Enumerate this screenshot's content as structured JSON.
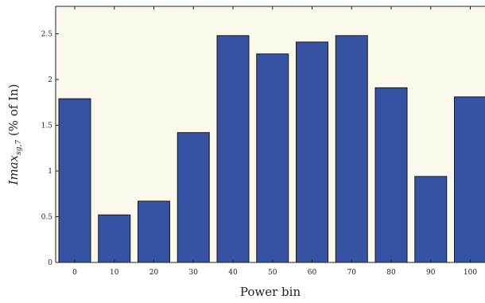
{
  "chart_data": {
    "type": "bar",
    "categories": [
      "0",
      "10",
      "20",
      "30",
      "40",
      "50",
      "60",
      "70",
      "80",
      "90",
      "100"
    ],
    "values": [
      1.79,
      0.52,
      0.67,
      1.42,
      2.48,
      2.28,
      2.41,
      2.48,
      1.91,
      0.94,
      1.81
    ],
    "xlabel": "Power bin",
    "ylabel_math": "Imax",
    "ylabel_sub": "sg,7",
    "ylabel_rest": " (% of In)",
    "ylim": [
      0,
      2.8
    ],
    "yticks": [
      0,
      0.5,
      1,
      1.5,
      2,
      2.5
    ],
    "ytick_labels": [
      "0",
      "0.5",
      "1",
      "1.5",
      "2",
      "2.5"
    ],
    "grid": false,
    "colors": {
      "bar_fill": "#3552a3",
      "bar_stroke": "#1a1a1a",
      "plot_background": "#fbf8ec",
      "axis": "#222222"
    }
  }
}
